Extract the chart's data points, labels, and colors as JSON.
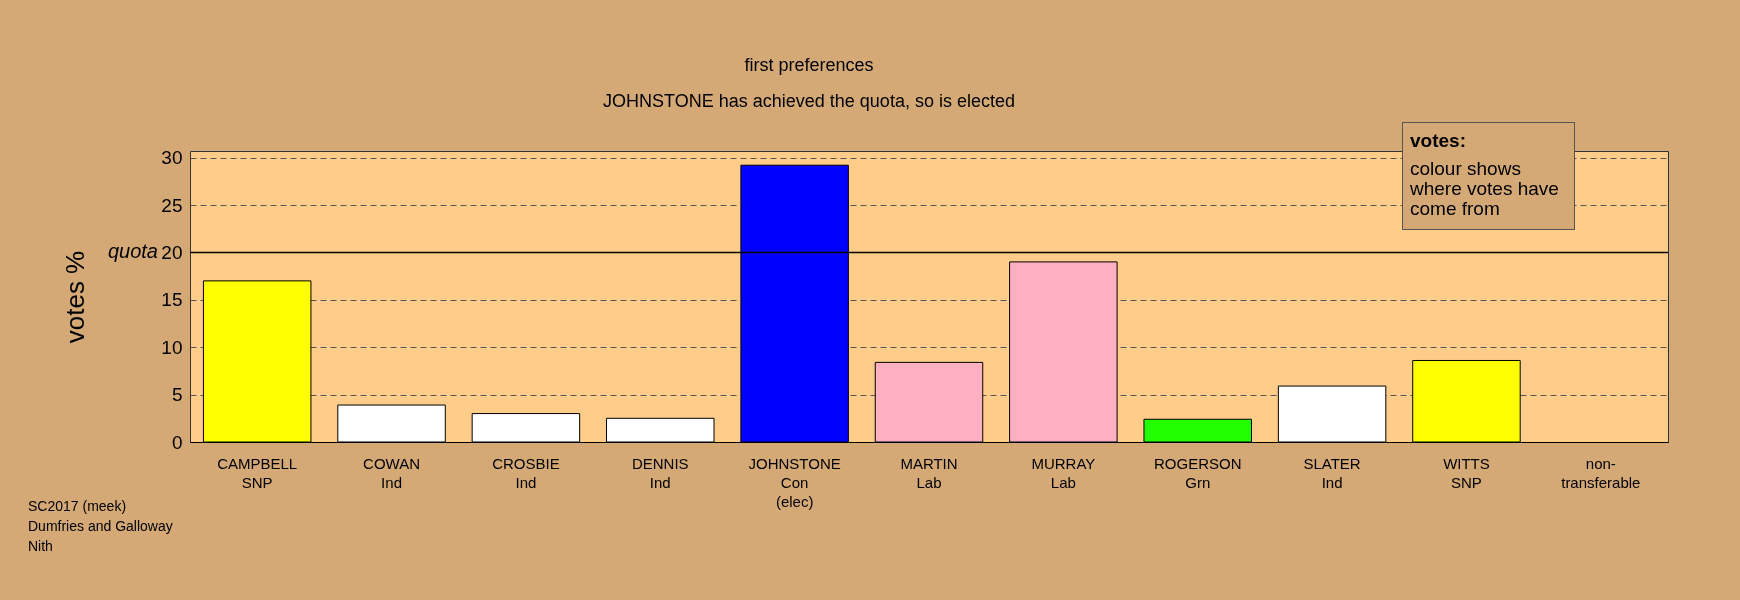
{
  "chart_data": {
    "type": "bar",
    "title": "first preferences",
    "subtitle": "JOHNSTONE has achieved the quota, so is elected",
    "ylabel": "votes %",
    "categories": [
      "CAMPBELL\nSNP",
      "COWAN\nInd",
      "CROSBIE\nInd",
      "DENNIS\nInd",
      "JOHNSTONE\nCon\n(elec)",
      "MARTIN\nLab",
      "MURRAY\nLab",
      "ROGERSON\nGrn",
      "SLATER\nInd",
      "WITTS\nSNP",
      "non-\ntransferable"
    ],
    "values": [
      17.0,
      3.9,
      3.0,
      2.5,
      29.2,
      8.4,
      19.0,
      2.4,
      5.9,
      8.6,
      null
    ],
    "colors": [
      "#ffff00",
      "#ffffff",
      "#ffffff",
      "#ffffff",
      "#0000ff",
      "#ffb0c0",
      "#ffb0c0",
      "#22ff00",
      "#ffffff",
      "#ffff00",
      "#ffffff"
    ],
    "ylim": [
      0,
      30.7
    ],
    "yticks": [
      0,
      5,
      10,
      15,
      20,
      25,
      30
    ],
    "grid": "y",
    "line_style": "dashed",
    "ref_lines": [
      {
        "axis": "y",
        "value": 20,
        "label": "quota"
      }
    ],
    "annotations": [
      "votes:",
      "colour shows where votes have come from",
      "SC2017 (meek)",
      "Dumfries and Galloway",
      "Nith"
    ]
  }
}
